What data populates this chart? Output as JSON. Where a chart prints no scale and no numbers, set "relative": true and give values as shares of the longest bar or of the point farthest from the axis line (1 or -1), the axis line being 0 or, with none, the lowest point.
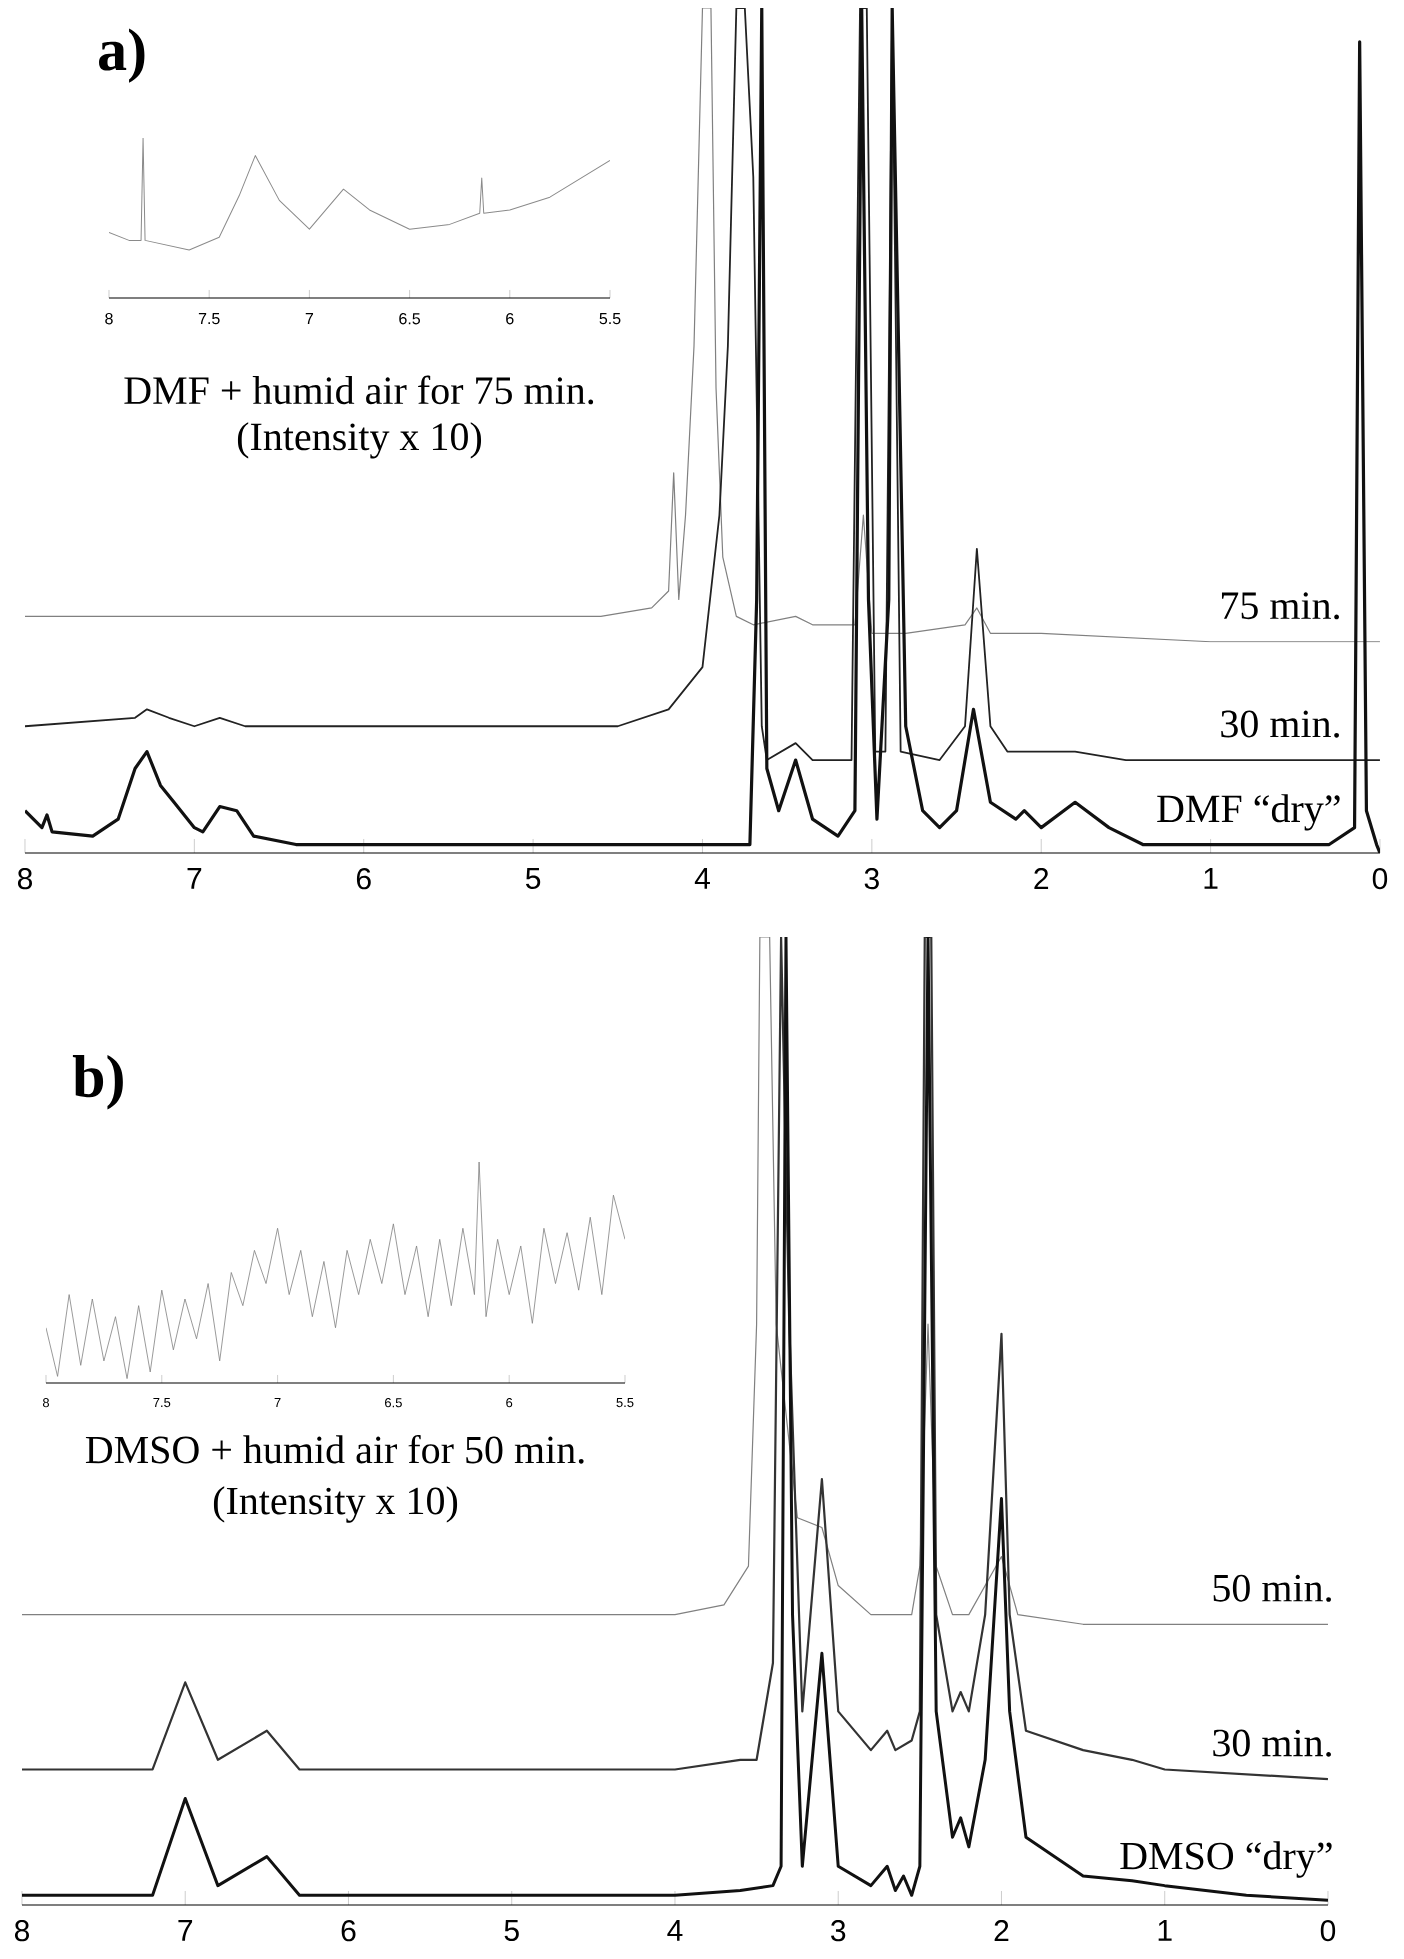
{
  "chart_data": [
    {
      "type": "line",
      "title": "a)",
      "relative": true,
      "xlim": [
        8,
        0
      ],
      "xticks": [
        8,
        7,
        6,
        5,
        4,
        3,
        2,
        1,
        0
      ],
      "series": [
        {
          "name": "75 min.",
          "color": "#808080",
          "x": [
            8,
            6,
            4.6,
            4.3,
            4.2,
            4.17,
            4.14,
            4.1,
            4.05,
            4.0,
            3.95,
            3.92,
            3.88,
            3.8,
            3.7,
            3.45,
            3.35,
            3.1,
            3.05,
            3.0,
            2.9,
            2.8,
            2.45,
            2.38,
            2.3,
            2,
            1,
            0
          ],
          "values": [
            0.28,
            0.28,
            0.28,
            0.29,
            0.31,
            0.45,
            0.3,
            0.4,
            0.6,
            1,
            1,
            0.55,
            0.35,
            0.28,
            0.27,
            0.28,
            0.27,
            0.27,
            0.4,
            0.26,
            0.26,
            0.26,
            0.27,
            0.29,
            0.26,
            0.26,
            0.25,
            0.25
          ]
        },
        {
          "name": "30 min.",
          "color": "#222222",
          "x": [
            8,
            7.35,
            7.28,
            7.15,
            7.0,
            6.85,
            6.7,
            6.4,
            5,
            4.5,
            4.2,
            4.0,
            3.9,
            3.85,
            3.8,
            3.75,
            3.7,
            3.65,
            3.62,
            3.45,
            3.35,
            3.12,
            3.07,
            3.03,
            2.98,
            2.92,
            2.88,
            2.83,
            2.6,
            2.45,
            2.38,
            2.3,
            2.2,
            2.1,
            1.8,
            1.5,
            1,
            0
          ],
          "values": [
            0.15,
            0.16,
            0.17,
            0.16,
            0.15,
            0.16,
            0.15,
            0.15,
            0.15,
            0.15,
            0.17,
            0.22,
            0.4,
            0.6,
            1,
            1,
            0.8,
            0.15,
            0.11,
            0.13,
            0.11,
            0.11,
            1,
            1,
            0.12,
            0.12,
            1,
            0.12,
            0.11,
            0.15,
            0.36,
            0.15,
            0.12,
            0.12,
            0.12,
            0.11,
            0.11,
            0.11
          ]
        },
        {
          "name": "DMF “dry”",
          "color": "#111111",
          "x": [
            8,
            7.9,
            7.87,
            7.84,
            7.6,
            7.45,
            7.35,
            7.28,
            7.2,
            7.12,
            7.0,
            6.95,
            6.85,
            6.75,
            6.65,
            6.4,
            5,
            3.72,
            3.68,
            3.65,
            3.62,
            3.55,
            3.45,
            3.35,
            3.2,
            3.1,
            3.06,
            3.02,
            2.97,
            2.9,
            2.88,
            2.8,
            2.7,
            2.6,
            2.5,
            2.4,
            2.3,
            2.15,
            2.1,
            2.0,
            1.8,
            1.6,
            1.4,
            1.0,
            0.3,
            0.15,
            0.12,
            0.08,
            0.02,
            0
          ],
          "values": [
            0.05,
            0.03,
            0.045,
            0.025,
            0.02,
            0.04,
            0.1,
            0.12,
            0.08,
            0.06,
            0.03,
            0.025,
            0.055,
            0.05,
            0.02,
            0.01,
            0.01,
            0.01,
            0.3,
            1,
            0.1,
            0.05,
            0.11,
            0.04,
            0.02,
            0.05,
            1,
            0.3,
            0.04,
            0.3,
            1,
            0.15,
            0.05,
            0.03,
            0.05,
            0.17,
            0.06,
            0.04,
            0.05,
            0.03,
            0.06,
            0.03,
            0.01,
            0.01,
            0.01,
            0.03,
            0.96,
            0.05,
            0.01,
            0
          ]
        }
      ]
    },
    {
      "type": "line",
      "relative": true,
      "xlim": [
        8,
        5.5
      ],
      "xticks": [
        8,
        7.5,
        7,
        6.5,
        6,
        5.5
      ],
      "xlabel": "DMF + humid air for 75 min.",
      "annotations": [
        "(Intensity x 10)"
      ],
      "series": [
        {
          "color": "#8a8a8a",
          "x": [
            8,
            7.9,
            7.84,
            7.83,
            7.82,
            7.6,
            7.45,
            7.35,
            7.27,
            7.15,
            7.0,
            6.83,
            6.7,
            6.5,
            6.3,
            6.15,
            6.14,
            6.13,
            6.0,
            5.8,
            5.5
          ],
          "values": [
            0.41,
            0.36,
            0.36,
            1,
            0.36,
            0.3,
            0.38,
            0.64,
            0.89,
            0.61,
            0.43,
            0.68,
            0.55,
            0.43,
            0.46,
            0.53,
            0.75,
            0.53,
            0.55,
            0.63,
            0.86
          ]
        }
      ]
    },
    {
      "type": "line",
      "title": "b)",
      "relative": true,
      "xlim": [
        8,
        0
      ],
      "xticks": [
        8,
        7,
        6,
        5,
        4,
        3,
        2,
        1,
        0
      ],
      "series": [
        {
          "name": "50 min.",
          "color": "#808080",
          "x": [
            8,
            6,
            4,
            3.7,
            3.55,
            3.5,
            3.48,
            3.42,
            3.38,
            3.25,
            3.1,
            3.0,
            2.8,
            2.7,
            2.55,
            2.5,
            2.45,
            2.4,
            2.3,
            2.2,
            2.1,
            2.0,
            1.9,
            1.5,
            1.2,
            1.0,
            0
          ],
          "values": [
            0.3,
            0.3,
            0.3,
            0.31,
            0.35,
            0.6,
            1,
            1,
            0.6,
            0.4,
            0.39,
            0.33,
            0.3,
            0.3,
            0.3,
            0.35,
            0.6,
            0.35,
            0.3,
            0.3,
            0.33,
            0.36,
            0.3,
            0.29,
            0.29,
            0.29,
            0.29
          ]
        },
        {
          "name": "30 min.",
          "color": "#333333",
          "x": [
            8,
            7.2,
            7.0,
            6.8,
            6.5,
            6.3,
            4,
            3.6,
            3.5,
            3.4,
            3.35,
            3.3,
            3.22,
            3.1,
            3.0,
            2.8,
            2.7,
            2.65,
            2.55,
            2.5,
            2.47,
            2.43,
            2.4,
            2.3,
            2.25,
            2.2,
            2.1,
            2.0,
            1.95,
            1.85,
            1.5,
            1.2,
            1.0,
            0.5,
            0
          ],
          "values": [
            0.14,
            0.14,
            0.23,
            0.15,
            0.18,
            0.14,
            0.14,
            0.15,
            0.15,
            0.25,
            1,
            0.6,
            0.2,
            0.44,
            0.2,
            0.16,
            0.18,
            0.16,
            0.17,
            0.2,
            1,
            1,
            0.3,
            0.2,
            0.22,
            0.2,
            0.3,
            0.59,
            0.3,
            0.18,
            0.16,
            0.15,
            0.14,
            0.135,
            0.13
          ]
        },
        {
          "name": "DMSO “dry”",
          "color": "#111111",
          "x": [
            8,
            7.2,
            7.0,
            6.8,
            6.5,
            6.3,
            4,
            3.6,
            3.4,
            3.35,
            3.32,
            3.28,
            3.22,
            3.1,
            3.0,
            2.8,
            2.7,
            2.65,
            2.6,
            2.55,
            2.5,
            2.45,
            2.4,
            2.3,
            2.25,
            2.2,
            2.1,
            2.0,
            1.95,
            1.85,
            1.5,
            1.2,
            1.0,
            0.5,
            0
          ],
          "values": [
            0.01,
            0.01,
            0.11,
            0.02,
            0.05,
            0.01,
            0.01,
            0.015,
            0.02,
            0.04,
            1,
            0.3,
            0.04,
            0.26,
            0.04,
            0.02,
            0.04,
            0.015,
            0.03,
            0.01,
            0.04,
            1,
            0.2,
            0.07,
            0.09,
            0.06,
            0.15,
            0.42,
            0.2,
            0.07,
            0.03,
            0.025,
            0.02,
            0.01,
            0.005
          ]
        }
      ]
    },
    {
      "type": "line",
      "relative": true,
      "xlim": [
        8,
        5.5
      ],
      "xticks": [
        8,
        7.5,
        7,
        6.5,
        6,
        5.5
      ],
      "xlabel": "DMSO + humid air for 50 min.",
      "annotations": [
        "(Intensity x 10)"
      ],
      "series": [
        {
          "color": "#808080",
          "x": [
            8,
            7.95,
            7.9,
            7.85,
            7.8,
            7.75,
            7.7,
            7.65,
            7.6,
            7.55,
            7.5,
            7.45,
            7.4,
            7.35,
            7.3,
            7.25,
            7.2,
            7.15,
            7.1,
            7.05,
            7.0,
            6.95,
            6.9,
            6.85,
            6.8,
            6.75,
            6.7,
            6.65,
            6.6,
            6.55,
            6.5,
            6.45,
            6.4,
            6.35,
            6.3,
            6.25,
            6.2,
            6.15,
            6.13,
            6.1,
            6.05,
            6.0,
            5.95,
            5.9,
            5.85,
            5.8,
            5.75,
            5.7,
            5.65,
            5.6,
            5.55,
            5.5
          ],
          "values": [
            0.25,
            0.03,
            0.4,
            0.08,
            0.38,
            0.1,
            0.3,
            0.02,
            0.35,
            0.05,
            0.42,
            0.15,
            0.38,
            0.2,
            0.45,
            0.1,
            0.5,
            0.35,
            0.6,
            0.45,
            0.7,
            0.4,
            0.6,
            0.3,
            0.55,
            0.25,
            0.6,
            0.4,
            0.65,
            0.45,
            0.72,
            0.4,
            0.62,
            0.3,
            0.65,
            0.35,
            0.7,
            0.4,
            1,
            0.3,
            0.65,
            0.4,
            0.62,
            0.27,
            0.7,
            0.45,
            0.68,
            0.42,
            0.75,
            0.4,
            0.85,
            0.65
          ]
        }
      ]
    }
  ]
}
